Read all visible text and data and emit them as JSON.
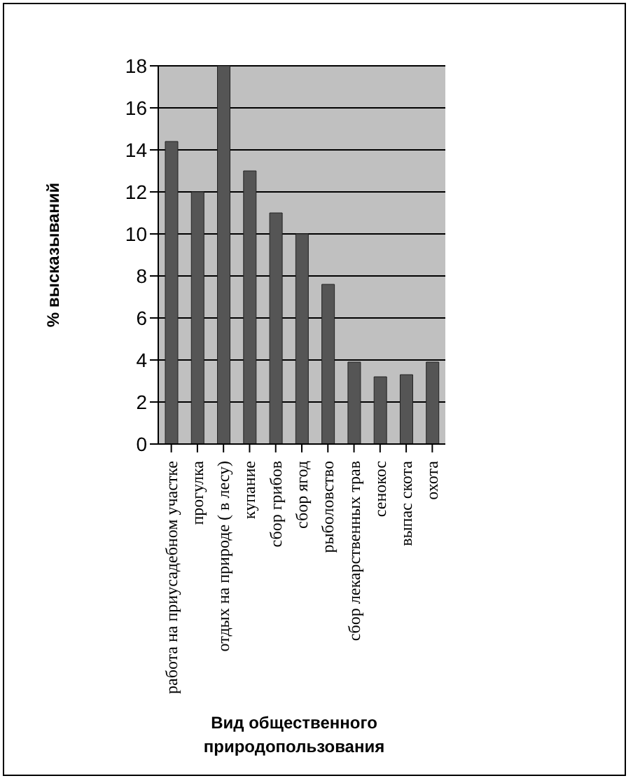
{
  "chart_data": {
    "type": "bar",
    "categories": [
      "работа на приусадебном участке",
      "прогулка",
      "отдых на природе ( в лесу)",
      "купание",
      "сбор грибов",
      "сбор ягод",
      "рыболовство",
      "сбор лекарственных трав",
      "сенокос",
      "выпас скота",
      "охота"
    ],
    "values": [
      14.4,
      12,
      18,
      13,
      11,
      10,
      7.6,
      3.9,
      3.2,
      3.3,
      3.9
    ],
    "color": "#555555",
    "ylabel": "% высказываний",
    "xlabel": "Вид общественного природопользования",
    "ylim": [
      0,
      18
    ],
    "yticks": [
      0,
      2,
      4,
      6,
      8,
      10,
      12,
      14,
      16,
      18
    ],
    "grid": "y"
  }
}
